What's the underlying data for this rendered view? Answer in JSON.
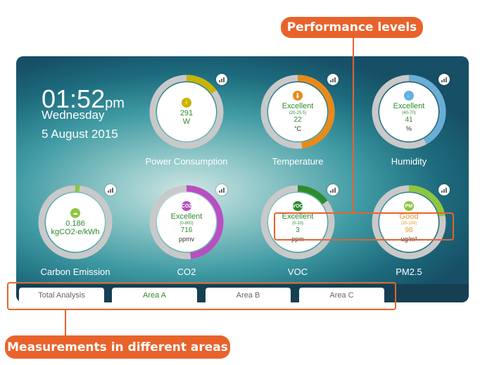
{
  "callouts": {
    "performance": "Performance levels",
    "areas": "Measurements in different areas"
  },
  "clock": {
    "time": "01:52",
    "ampm": "pm",
    "day": "Wednesday",
    "date": "5 August 2015"
  },
  "gauges": [
    {
      "label": "Power Consumption",
      "icon": "lightning-icon",
      "rating": "",
      "range": "",
      "value": "291",
      "unit": "W",
      "color": "#c8b400",
      "level": 0.15
    },
    {
      "label": "Temperature",
      "icon": "thermometer-icon",
      "rating": "Excellent",
      "range": "(20-25.5)",
      "value": "22",
      "unit": "°C",
      "color": "#e88a1a",
      "level": 0.48
    },
    {
      "label": "Humidity",
      "icon": "water-drop-icon",
      "rating": "Excellent",
      "range": "(40-70)",
      "value": "41",
      "unit": "%",
      "color": "#6aaed6",
      "level": 0.42
    },
    {
      "label": "Carbon Emission",
      "icon": "cloud-icon",
      "rating": "",
      "range": "",
      "value": "0.186",
      "unit": "kgCO2-e/kWh",
      "color": "#8dc63f",
      "level": 0.02
    },
    {
      "label": "CO2",
      "icon": "co2-icon",
      "rating": "Excellent",
      "range": "(0-800)",
      "value": "716",
      "unit": "ppmv",
      "color": "#b84fc0",
      "level": 0.48
    },
    {
      "label": "VOC",
      "icon": "voc-icon",
      "rating": "Excellent",
      "range": "(0-10)",
      "value": "3",
      "unit": "ppm",
      "color": "#2e8b2e",
      "level": 0.15
    },
    {
      "label": "PM2.5",
      "icon": "pm25-icon",
      "rating": "Good",
      "range": "(20-100)",
      "value": "98",
      "unit": "ug/m³",
      "color": "#8dc63f",
      "level": 0.22
    }
  ],
  "icon_glyphs": {
    "lightning": "⚡",
    "thermometer": "🌡",
    "drop": "💧",
    "cloud": "☁",
    "co2": "CO2",
    "voc": "VOC",
    "pm": "PM"
  },
  "tabs": [
    {
      "label": "Total Analysis",
      "active": false
    },
    {
      "label": "Area A",
      "active": true
    },
    {
      "label": "Area B",
      "active": false
    },
    {
      "label": "Area C",
      "active": false
    }
  ]
}
